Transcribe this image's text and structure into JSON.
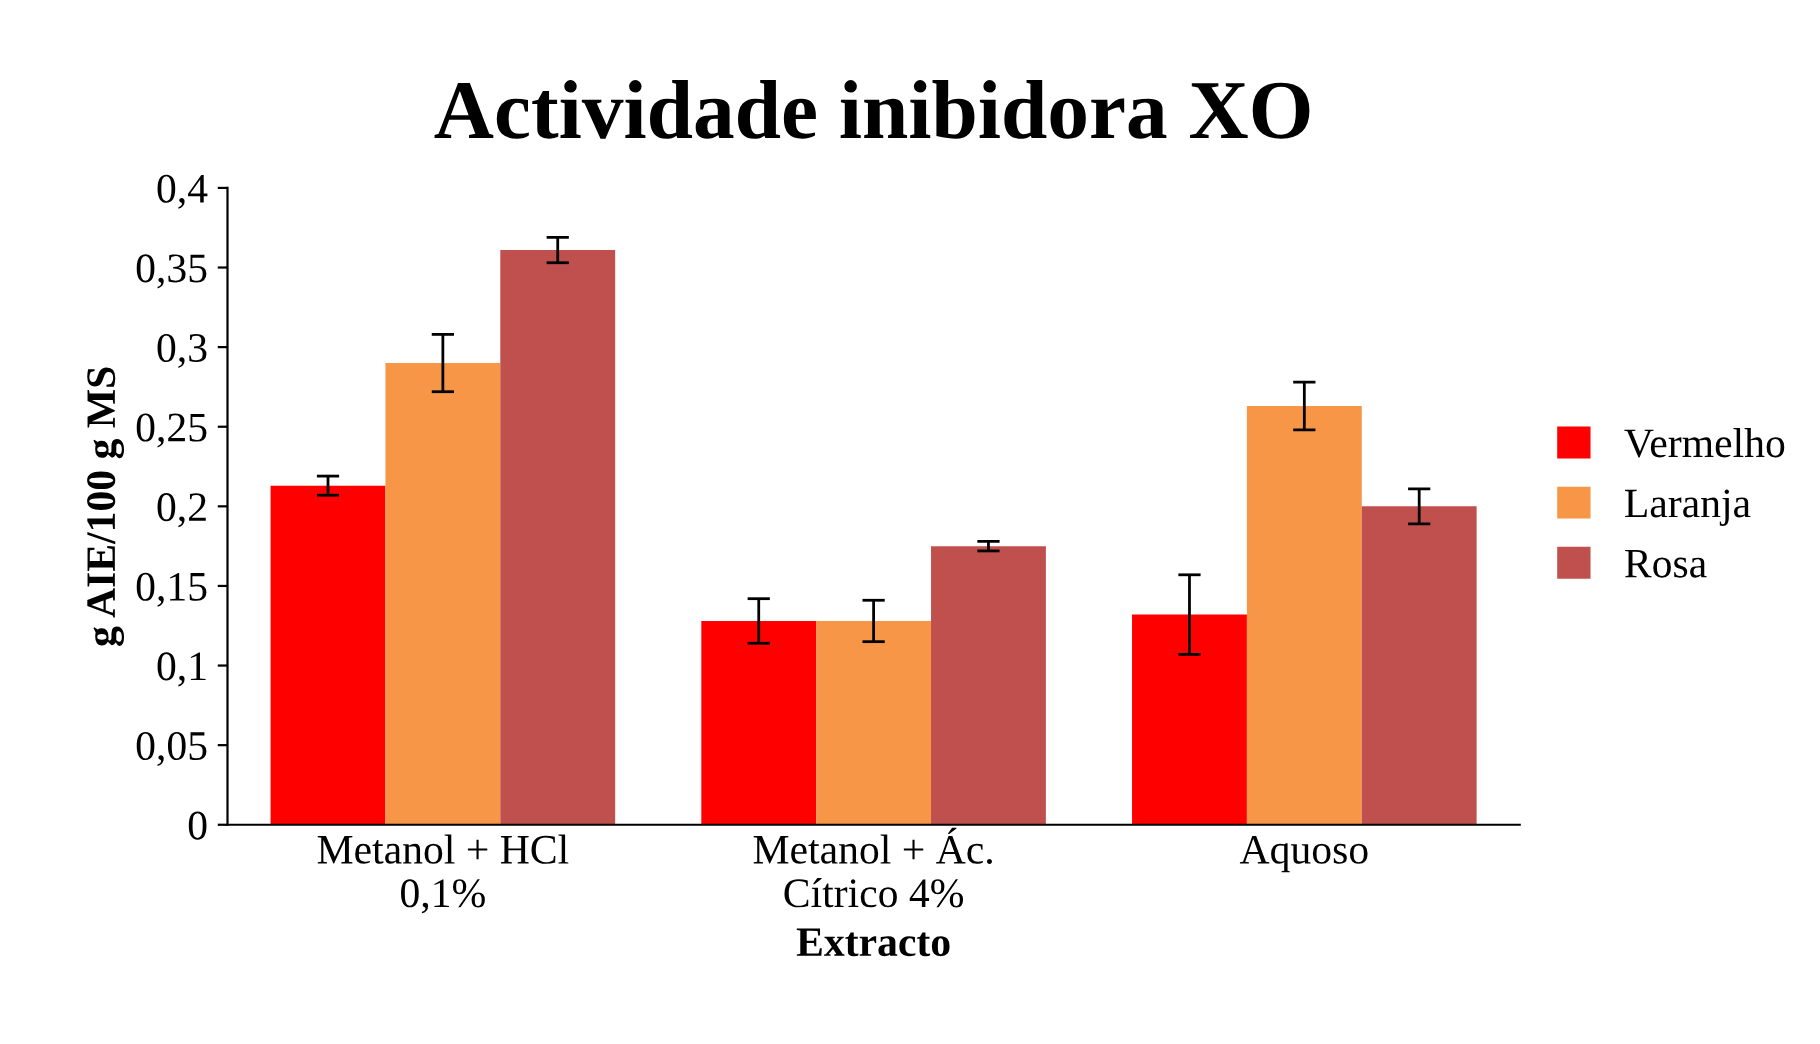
{
  "chart_data": {
    "type": "bar",
    "title": "Actividade inibidora XO",
    "xlabel": "Extracto",
    "ylabel": "g AIE/100 g MS",
    "categories": [
      "Metanol + HCl\n0,1%",
      "Metanol + Ác.\nCítrico 4%",
      "Aquoso"
    ],
    "series": [
      {
        "name": "Vermelho",
        "color": "#ff0000",
        "values": [
          0.213,
          0.128,
          0.132
        ],
        "errors": [
          0.006,
          0.014,
          0.025
        ]
      },
      {
        "name": "Laranja",
        "color": "#f79646",
        "values": [
          0.29,
          0.128,
          0.263
        ],
        "errors": [
          0.018,
          0.013,
          0.015
        ]
      },
      {
        "name": "Rosa",
        "color": "#c0504d",
        "values": [
          0.361,
          0.175,
          0.2
        ],
        "errors": [
          0.008,
          0.003,
          0.011
        ]
      }
    ],
    "ylim": [
      0,
      0.4
    ],
    "yticks": [
      0,
      {
        "value": 0.05,
        "label": "0,05"
      },
      {
        "value": 0.1,
        "label": "0,1"
      },
      {
        "value": 0.15,
        "label": "0,15"
      },
      {
        "value": 0.2,
        "label": "0,2"
      },
      {
        "value": 0.25,
        "label": "0,25"
      },
      {
        "value": 0.3,
        "label": "0,3"
      },
      {
        "value": 0.35,
        "label": "0,35"
      },
      {
        "value": 0.4,
        "label": "0,4"
      }
    ],
    "grid": false,
    "legend": "right"
  }
}
